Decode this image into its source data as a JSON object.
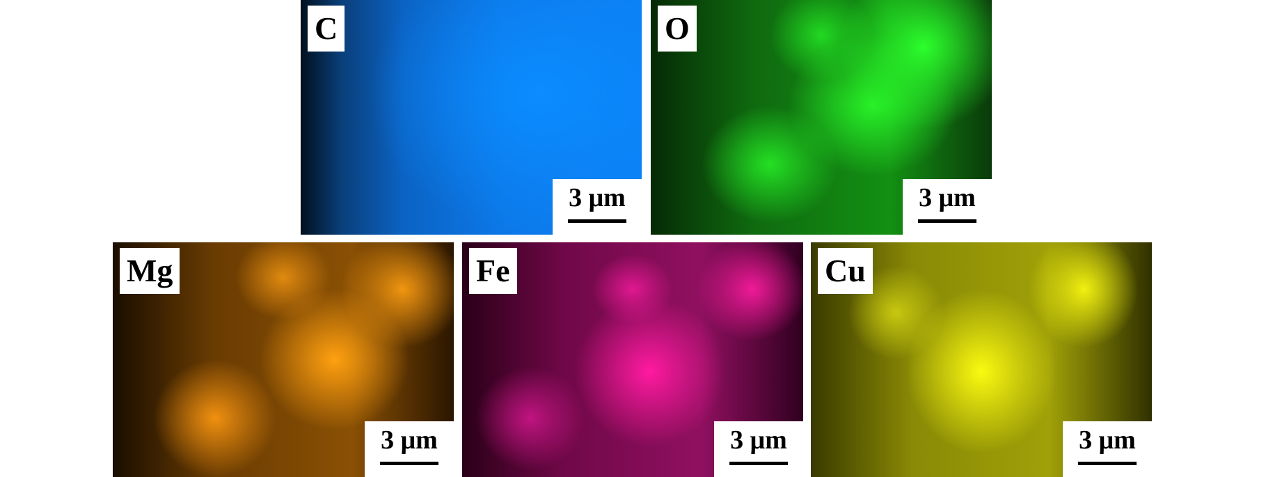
{
  "panels": [
    {
      "element": "C",
      "scale": "3 μm",
      "color": "#0b80f5"
    },
    {
      "element": "O",
      "scale": "3 μm",
      "color": "#22dd22"
    },
    {
      "element": "Mg",
      "scale": "3 μm",
      "color": "#ff9a10"
    },
    {
      "element": "Fe",
      "scale": "3 μm",
      "color": "#ff1aa0"
    },
    {
      "element": "Cu",
      "scale": "3 μm",
      "color": "#f0f010"
    }
  ]
}
